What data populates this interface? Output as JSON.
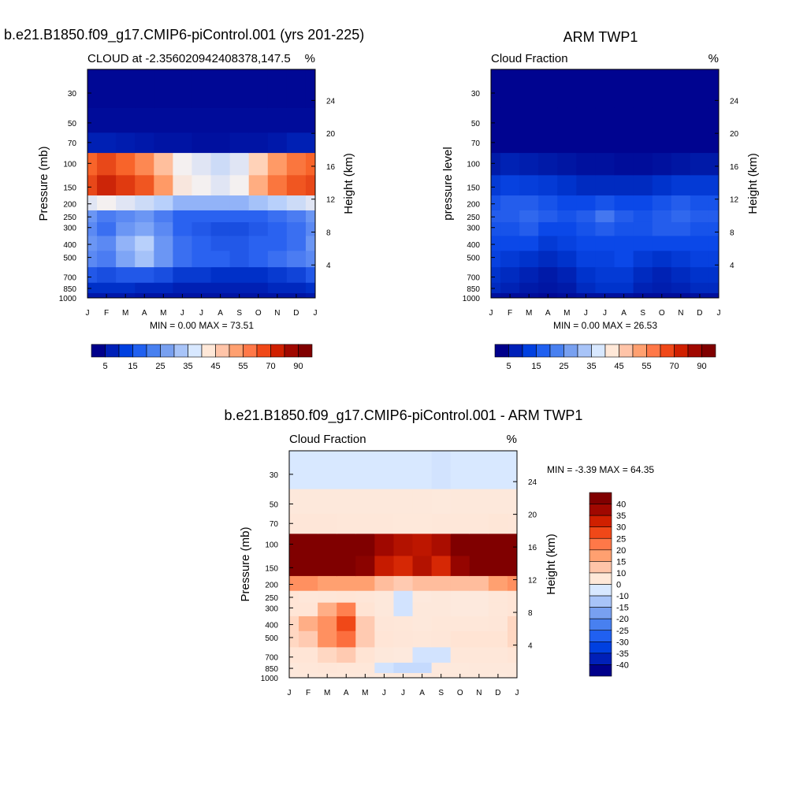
{
  "chart_data": [
    {
      "type": "heatmap",
      "title": "b.e21.B1850.f09_g17.CMIP6-piControl.001 (yrs 201-225)",
      "subtitle_left": "CLOUD at -2.356020942408378,147.5",
      "subtitle_right": "%",
      "ylabel": "Pressure (mb)",
      "ylabel_right": "Height (km)",
      "x": [
        "J",
        "F",
        "M",
        "A",
        "M",
        "J",
        "J",
        "A",
        "S",
        "O",
        "N",
        "D",
        "J"
      ],
      "y_ticks": [
        30,
        50,
        70,
        100,
        150,
        200,
        250,
        300,
        400,
        500,
        700,
        850,
        1000
      ],
      "y_right_ticks": [
        24,
        20,
        16,
        12,
        8,
        4
      ],
      "minmax_text": "MIN =   0.00 MAX =  73.51",
      "colorbar_labels": [
        "5",
        "15",
        "25",
        "35",
        "45",
        "55",
        "70",
        "90"
      ],
      "colorbar_colors": [
        "#00008b",
        "#0020b8",
        "#0040e0",
        "#2060f0",
        "#4880f0",
        "#78a0f0",
        "#a8c4f8",
        "#d8e8ff",
        "#ffe8d8",
        "#ffc4a8",
        "#ffa070",
        "#ff7848",
        "#f04818",
        "#d02000",
        "#a00800",
        "#800000"
      ],
      "series": [
        {
          "name": "J",
          "values": [
            2,
            3,
            8,
            62,
            66,
            42,
            30,
            28,
            30,
            28,
            20,
            12,
            6
          ]
        },
        {
          "name": "F",
          "values": [
            2,
            3,
            8,
            66,
            73,
            44,
            26,
            24,
            28,
            26,
            18,
            12,
            6
          ]
        },
        {
          "name": "M",
          "values": [
            2,
            3,
            7,
            62,
            68,
            42,
            28,
            30,
            34,
            32,
            20,
            12,
            6
          ]
        },
        {
          "name": "A",
          "values": [
            2,
            3,
            6,
            58,
            64,
            40,
            30,
            32,
            38,
            36,
            20,
            10,
            5
          ]
        },
        {
          "name": "M",
          "values": [
            2,
            3,
            5,
            52,
            56,
            38,
            26,
            28,
            30,
            30,
            18,
            10,
            5
          ]
        },
        {
          "name": "J",
          "values": [
            2,
            3,
            5,
            44,
            46,
            34,
            22,
            22,
            24,
            24,
            14,
            8,
            5
          ]
        },
        {
          "name": "J",
          "values": [
            2,
            3,
            4,
            42,
            44,
            34,
            22,
            20,
            22,
            22,
            14,
            8,
            5
          ]
        },
        {
          "name": "A",
          "values": [
            2,
            3,
            4,
            40,
            42,
            34,
            22,
            18,
            20,
            22,
            12,
            8,
            5
          ]
        },
        {
          "name": "S",
          "values": [
            2,
            3,
            5,
            42,
            44,
            34,
            22,
            18,
            20,
            20,
            12,
            8,
            5
          ]
        },
        {
          "name": "O",
          "values": [
            2,
            3,
            5,
            50,
            54,
            36,
            22,
            20,
            22,
            22,
            12,
            8,
            5
          ]
        },
        {
          "name": "N",
          "values": [
            2,
            3,
            6,
            56,
            60,
            38,
            24,
            22,
            22,
            24,
            14,
            10,
            5
          ]
        },
        {
          "name": "D",
          "values": [
            2,
            3,
            8,
            60,
            64,
            40,
            26,
            24,
            24,
            26,
            16,
            10,
            5
          ]
        },
        {
          "name": "J",
          "values": [
            2,
            3,
            8,
            62,
            66,
            42,
            30,
            28,
            30,
            28,
            20,
            12,
            6
          ]
        }
      ]
    },
    {
      "type": "heatmap",
      "title": "ARM TWP1",
      "subtitle_left": "Cloud Fraction",
      "subtitle_right": "%",
      "ylabel": "pressure level",
      "ylabel_right": "Height (km)",
      "x": [
        "J",
        "F",
        "M",
        "A",
        "M",
        "J",
        "J",
        "A",
        "S",
        "O",
        "N",
        "D",
        "J"
      ],
      "y_ticks": [
        30,
        50,
        70,
        100,
        150,
        200,
        250,
        300,
        400,
        500,
        700,
        850,
        1000
      ],
      "y_right_ticks": [
        24,
        20,
        16,
        12,
        8,
        4
      ],
      "minmax_text": "MIN =   0.00 MAX =  26.53",
      "colorbar_labels": [
        "5",
        "15",
        "25",
        "35",
        "45",
        "55",
        "70",
        "90"
      ],
      "colorbar_colors": [
        "#00008b",
        "#0020b8",
        "#0040e0",
        "#2060f0",
        "#4880f0",
        "#78a0f0",
        "#a8c4f8",
        "#d8e8ff",
        "#ffe8d8",
        "#ffc4a8",
        "#ffa070",
        "#ff7848",
        "#f04818",
        "#d02000",
        "#a00800",
        "#800000"
      ],
      "series": [
        {
          "name": "J",
          "values": [
            1,
            1,
            1,
            6,
            14,
            20,
            22,
            20,
            18,
            16,
            12,
            10,
            4
          ]
        },
        {
          "name": "F",
          "values": [
            1,
            1,
            1,
            8,
            16,
            22,
            22,
            20,
            18,
            14,
            10,
            8,
            3
          ]
        },
        {
          "name": "M",
          "values": [
            1,
            1,
            1,
            7,
            15,
            22,
            24,
            22,
            18,
            12,
            8,
            6,
            3
          ]
        },
        {
          "name": "A",
          "values": [
            1,
            1,
            1,
            6,
            14,
            20,
            22,
            18,
            14,
            10,
            6,
            5,
            2
          ]
        },
        {
          "name": "M",
          "values": [
            1,
            1,
            1,
            5,
            12,
            18,
            20,
            18,
            16,
            12,
            8,
            6,
            3
          ]
        },
        {
          "name": "J",
          "values": [
            1,
            1,
            1,
            4,
            10,
            18,
            22,
            20,
            18,
            16,
            12,
            10,
            4
          ]
        },
        {
          "name": "J",
          "values": [
            1,
            1,
            1,
            4,
            10,
            20,
            26,
            22,
            18,
            16,
            14,
            12,
            4
          ]
        },
        {
          "name": "A",
          "values": [
            1,
            1,
            1,
            3,
            10,
            18,
            22,
            20,
            18,
            18,
            14,
            12,
            4
          ]
        },
        {
          "name": "S",
          "values": [
            1,
            1,
            1,
            3,
            10,
            18,
            20,
            20,
            18,
            14,
            10,
            8,
            3
          ]
        },
        {
          "name": "O",
          "values": [
            1,
            1,
            1,
            4,
            12,
            20,
            22,
            22,
            18,
            12,
            8,
            7,
            3
          ]
        },
        {
          "name": "N",
          "values": [
            1,
            1,
            1,
            5,
            14,
            22,
            24,
            22,
            18,
            14,
            10,
            8,
            3
          ]
        },
        {
          "name": "D",
          "values": [
            1,
            1,
            1,
            6,
            14,
            20,
            22,
            20,
            18,
            16,
            12,
            10,
            4
          ]
        },
        {
          "name": "J",
          "values": [
            1,
            1,
            1,
            6,
            14,
            20,
            22,
            20,
            18,
            16,
            12,
            10,
            4
          ]
        }
      ]
    },
    {
      "type": "heatmap",
      "title": "b.e21.B1850.f09_g17.CMIP6-piControl.001 - ARM TWP1",
      "subtitle_left": "Cloud Fraction",
      "subtitle_right": "%",
      "ylabel": "Pressure (mb)",
      "ylabel_right": "Height (km)",
      "x": [
        "J",
        "F",
        "M",
        "A",
        "M",
        "J",
        "J",
        "A",
        "S",
        "O",
        "N",
        "D",
        "J"
      ],
      "y_ticks": [
        30,
        50,
        70,
        100,
        150,
        200,
        250,
        300,
        400,
        500,
        700,
        850,
        1000
      ],
      "y_right_ticks": [
        24,
        20,
        16,
        12,
        8,
        4
      ],
      "minmax_text": "MIN =  -3.39 MAX =  64.35",
      "colorbar_labels": [
        "40",
        "35",
        "30",
        "25",
        "20",
        "15",
        "10",
        "0",
        "-10",
        "-15",
        "-20",
        "-25",
        "-30",
        "-35",
        "-40"
      ],
      "colorbar_colors": [
        "#800000",
        "#a00800",
        "#d02000",
        "#f04818",
        "#ff7848",
        "#ffa070",
        "#ffc4a8",
        "#ffe8d8",
        "#d8e8ff",
        "#a8c4f8",
        "#78a0f0",
        "#4880f0",
        "#2060f0",
        "#0040e0",
        "#0020b8",
        "#00008b"
      ],
      "series": [
        {
          "name": "J",
          "values": [
            -1,
            2,
            6,
            56,
            52,
            22,
            8,
            8,
            12,
            12,
            8,
            2,
            2
          ]
        },
        {
          "name": "F",
          "values": [
            -1,
            2,
            6,
            58,
            57,
            22,
            4,
            8,
            18,
            14,
            8,
            4,
            2
          ]
        },
        {
          "name": "M",
          "values": [
            -1,
            2,
            6,
            55,
            53,
            20,
            6,
            18,
            22,
            22,
            12,
            6,
            3
          ]
        },
        {
          "name": "A",
          "values": [
            -1,
            2,
            5,
            52,
            50,
            20,
            8,
            24,
            30,
            26,
            14,
            5,
            3
          ]
        },
        {
          "name": "M",
          "values": [
            -1,
            2,
            4,
            47,
            44,
            20,
            6,
            10,
            14,
            14,
            10,
            4,
            2
          ]
        },
        {
          "name": "J",
          "values": [
            -1,
            2,
            4,
            40,
            36,
            16,
            2,
            2,
            6,
            8,
            2,
            -2,
            1
          ]
        },
        {
          "name": "J",
          "values": [
            -1,
            2,
            3,
            38,
            34,
            14,
            -2,
            -2,
            4,
            6,
            0,
            -4,
            1
          ]
        },
        {
          "name": "A",
          "values": [
            -1,
            2,
            3,
            37,
            38,
            16,
            0,
            2,
            2,
            4,
            -2,
            -4,
            1
          ]
        },
        {
          "name": "S",
          "values": [
            -2,
            1,
            4,
            39,
            34,
            16,
            2,
            2,
            4,
            6,
            -2,
            0,
            2
          ]
        },
        {
          "name": "O",
          "values": [
            -1,
            2,
            4,
            46,
            42,
            16,
            0,
            0,
            4,
            10,
            4,
            1,
            2
          ]
        },
        {
          "name": "N",
          "values": [
            -1,
            2,
            5,
            51,
            46,
            16,
            0,
            0,
            4,
            10,
            4,
            2,
            2
          ]
        },
        {
          "name": "D",
          "values": [
            -1,
            2,
            7,
            54,
            50,
            20,
            4,
            4,
            6,
            10,
            4,
            2,
            1
          ]
        },
        {
          "name": "J",
          "values": [
            -1,
            2,
            6,
            56,
            52,
            22,
            8,
            8,
            12,
            12,
            8,
            2,
            2
          ]
        }
      ]
    }
  ]
}
